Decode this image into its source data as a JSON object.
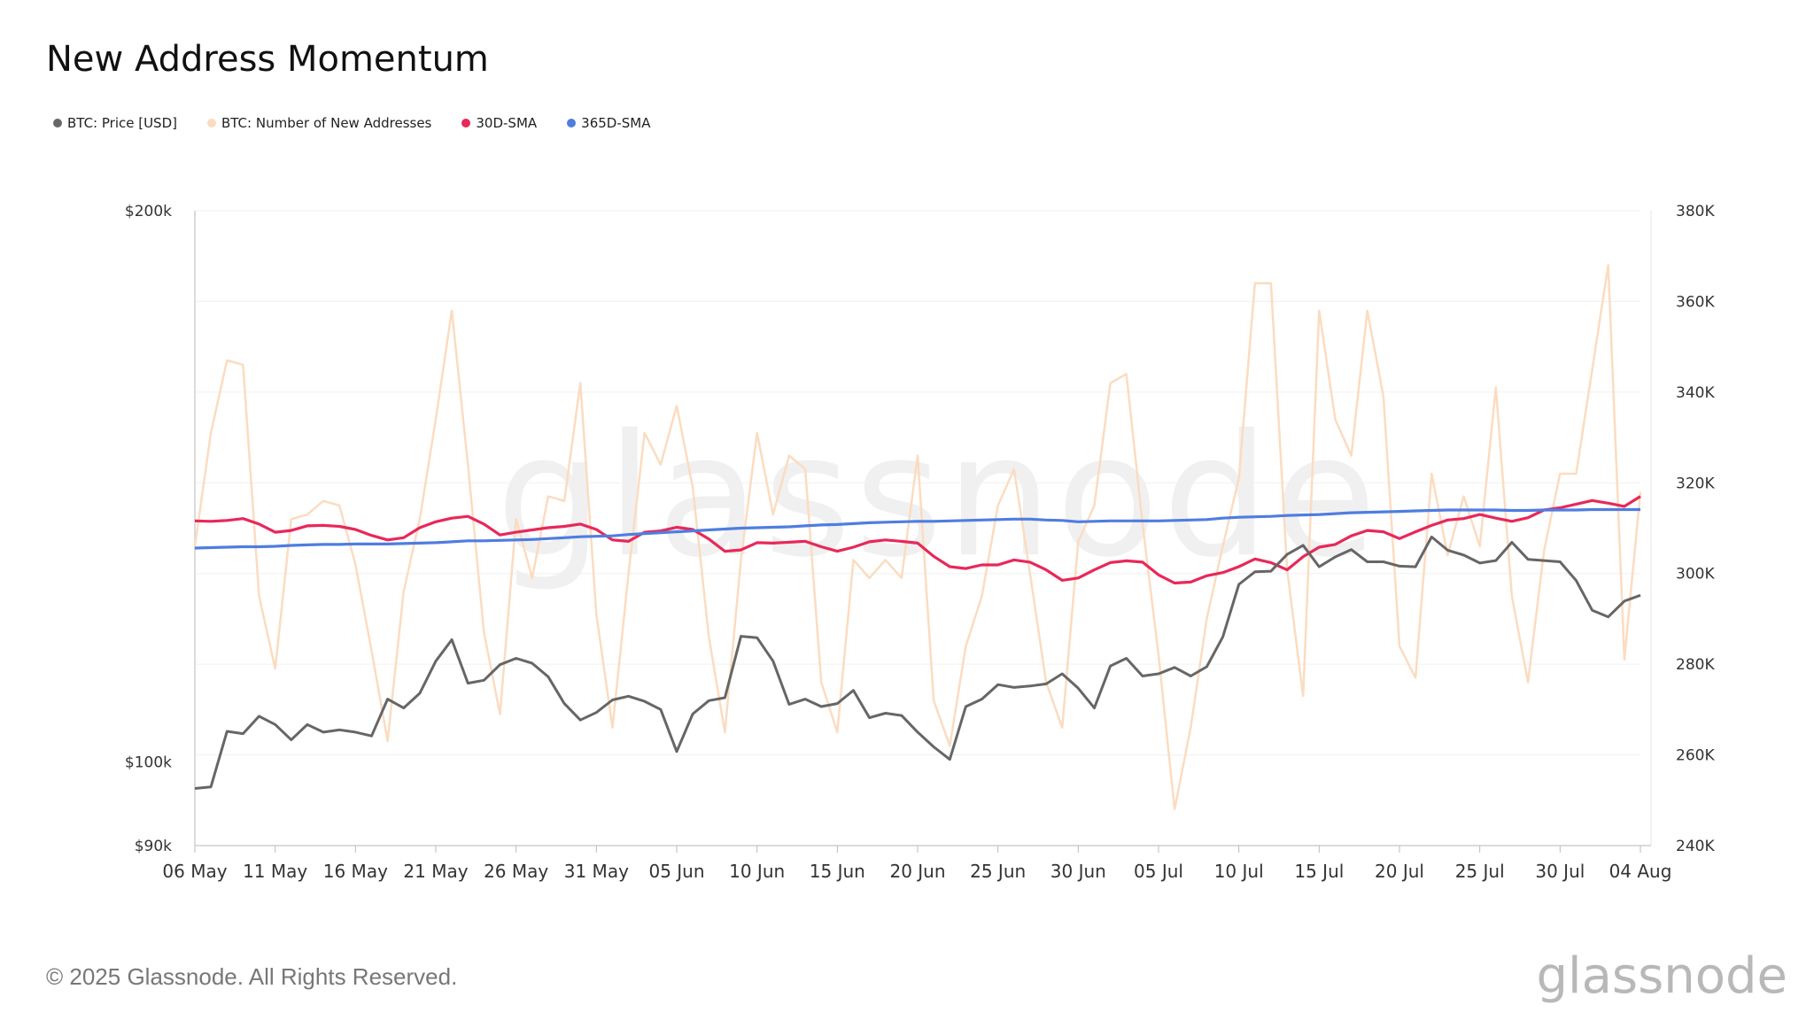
{
  "title": "New Address Momentum",
  "legend": [
    {
      "label": "BTC: Price [USD]",
      "color": "#666666"
    },
    {
      "label": "BTC: Number of New Addresses",
      "color": "#fbdcc0"
    },
    {
      "label": "30D-SMA",
      "color": "#e8285a"
    },
    {
      "label": "365D-SMA",
      "color": "#4f7de0"
    }
  ],
  "watermark": "glassnode",
  "footer": {
    "copyright": "© 2025 Glassnode. All Rights Reserved.",
    "logo": "glassnode"
  },
  "chart_data": {
    "type": "line",
    "title": "New Address Momentum",
    "x_start": "2025-05-06",
    "x_end": "2025-08-05",
    "xticks": [
      "06 May",
      "11 May",
      "16 May",
      "21 May",
      "26 May",
      "31 May",
      "05 Jun",
      "10 Jun",
      "15 Jun",
      "20 Jun",
      "25 Jun",
      "30 Jun",
      "05 Jul",
      "10 Jul",
      "15 Jul",
      "20 Jul",
      "25 Jul",
      "30 Jul",
      "04 Aug"
    ],
    "y_left": {
      "scale": "log",
      "min": 90000,
      "max": 200000,
      "ticks": [
        {
          "v": 90000,
          "label": "$90k"
        },
        {
          "v": 100000,
          "label": "$100k"
        },
        {
          "v": 200000,
          "label": "$200k"
        }
      ]
    },
    "y_right": {
      "scale": "linear",
      "min": 240000,
      "max": 380000,
      "ticks": [
        {
          "v": 240000,
          "label": "240K"
        },
        {
          "v": 260000,
          "label": "260K"
        },
        {
          "v": 280000,
          "label": "280K"
        },
        {
          "v": 300000,
          "label": "300K"
        },
        {
          "v": 320000,
          "label": "320K"
        },
        {
          "v": 340000,
          "label": "340K"
        },
        {
          "v": 360000,
          "label": "360K"
        },
        {
          "v": 380000,
          "label": "380K"
        }
      ]
    },
    "series": [
      {
        "name": "BTC: Number of New Addresses",
        "axis": "right",
        "color": "#fbdcc0",
        "values": [
          306000,
          331000,
          347000,
          346000,
          295000,
          279000,
          312000,
          313000,
          316000,
          315000,
          302000,
          283000,
          263000,
          296000,
          312000,
          334000,
          358000,
          324000,
          287000,
          269000,
          312000,
          299000,
          317000,
          316000,
          342000,
          291000,
          266000,
          300000,
          331000,
          324000,
          337000,
          319000,
          286000,
          265000,
          303000,
          331000,
          313000,
          326000,
          323000,
          276000,
          265000,
          303000,
          299000,
          303000,
          299000,
          326000,
          272000,
          262000,
          284000,
          295000,
          315000,
          323000,
          300000,
          276000,
          266000,
          307000,
          315000,
          342000,
          344000,
          311000,
          282000,
          248000,
          266000,
          290000,
          306000,
          321000,
          364000,
          364000,
          301000,
          273000,
          358000,
          334000,
          326000,
          358000,
          339000,
          284000,
          277000,
          322000,
          304000,
          317000,
          306000,
          341000,
          295000,
          276000,
          305000,
          322000,
          322000,
          345000,
          368000,
          281000,
          318000
        ]
      },
      {
        "name": "30D-SMA",
        "axis": "right",
        "color": "#e8285a",
        "values": [
          311600,
          311500,
          311700,
          312100,
          310900,
          309100,
          309500,
          310500,
          310600,
          310400,
          309700,
          308400,
          307400,
          307900,
          310100,
          311400,
          312200,
          312600,
          310900,
          308500,
          309100,
          309600,
          310100,
          310400,
          310900,
          309700,
          307400,
          307100,
          309100,
          309400,
          310200,
          309700,
          307600,
          304900,
          305200,
          306800,
          306700,
          306900,
          307100,
          305900,
          304900,
          305800,
          307000,
          307400,
          307100,
          306700,
          303800,
          301500,
          301100,
          301900,
          301900,
          303000,
          302500,
          300800,
          298500,
          299000,
          300800,
          302400,
          302800,
          302500,
          299700,
          297900,
          298100,
          299500,
          300200,
          301500,
          303200,
          302400,
          300800,
          303700,
          305800,
          306400,
          308300,
          309500,
          309200,
          307700,
          309200,
          310600,
          311800,
          312100,
          313000,
          312200,
          311500,
          312300,
          314000,
          314500,
          315300,
          316100,
          315500,
          314800,
          317000
        ]
      },
      {
        "name": "365D-SMA",
        "axis": "right",
        "color": "#4f7de0",
        "values": [
          305600,
          305700,
          305800,
          305900,
          305900,
          306000,
          306200,
          306300,
          306400,
          306400,
          306500,
          306500,
          306500,
          306600,
          306700,
          306800,
          307000,
          307200,
          307200,
          307300,
          307400,
          307500,
          307700,
          307900,
          308100,
          308200,
          308300,
          308600,
          308800,
          309000,
          309200,
          309400,
          309600,
          309800,
          310000,
          310100,
          310200,
          310300,
          310500,
          310700,
          310800,
          311000,
          311200,
          311300,
          311400,
          311500,
          311500,
          311600,
          311700,
          311800,
          311900,
          312000,
          312000,
          311800,
          311700,
          311400,
          311500,
          311600,
          311600,
          311600,
          311600,
          311700,
          311800,
          311900,
          312200,
          312400,
          312500,
          312600,
          312800,
          312900,
          313000,
          313200,
          313400,
          313500,
          313600,
          313700,
          313800,
          313900,
          314000,
          314000,
          314000,
          314000,
          313900,
          313900,
          314000,
          314000,
          314000,
          314100,
          314100,
          314100,
          314100
        ]
      },
      {
        "name": "BTC: Price [USD]",
        "axis": "left",
        "color": "#666666",
        "values": [
          96700,
          96900,
          103900,
          103600,
          105900,
          104800,
          102800,
          104800,
          103800,
          104100,
          103800,
          103300,
          108200,
          107000,
          109000,
          113500,
          116600,
          110400,
          110800,
          113000,
          113900,
          113200,
          111300,
          107600,
          105400,
          106400,
          108100,
          108600,
          107900,
          106800,
          101300,
          106200,
          108000,
          108400,
          117100,
          116900,
          113500,
          107500,
          108200,
          107200,
          107600,
          109400,
          105700,
          106300,
          106000,
          103800,
          101900,
          100300,
          107200,
          108200,
          110200,
          109800,
          110000,
          110300,
          111700,
          109700,
          107000,
          112800,
          113900,
          111400,
          111700,
          112600,
          111400,
          112700,
          117000,
          125000,
          127000,
          127100,
          129800,
          131300,
          127800,
          129400,
          130600,
          128600,
          128600,
          127900,
          127800,
          132700,
          130500,
          129700,
          128400,
          128800,
          131800,
          129000,
          128800,
          128600,
          125600,
          121000,
          120000,
          122400,
          123300
        ]
      }
    ]
  }
}
